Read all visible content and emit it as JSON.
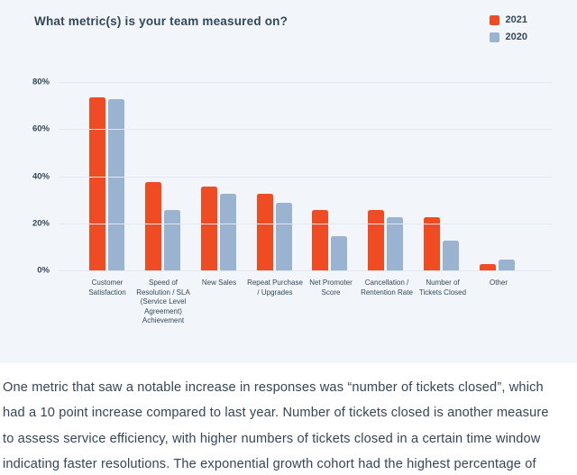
{
  "colors": {
    "card_background": "#f2f6fa",
    "accent_2021": "#f04c24",
    "accent_2020": "#9ab3d1",
    "text": "#33475b",
    "gridline": "#e2e8f0"
  },
  "chart_data": {
    "type": "bar",
    "title": "What metric(s) is your team measured on?",
    "categories": [
      "Customer Satisfaction",
      "Speed of Resolution / SLA (Service Level Agreement) Achievement",
      "New Sales",
      "Repeat Purchase / Upgrades",
      "Net Promoter Score",
      "Cancellation / Rentention Rate",
      "Number of Tickets Closed",
      "Other"
    ],
    "series": [
      {
        "name": "2021",
        "color": "#f04c24",
        "values": [
          74,
          38,
          36,
          33,
          26,
          26,
          23,
          3
        ]
      },
      {
        "name": "2020",
        "color": "#9ab3d1",
        "values": [
          73,
          26,
          33,
          29,
          15,
          23,
          13,
          5
        ]
      }
    ],
    "xlabel": "",
    "ylabel": "",
    "ylim": [
      0,
      80
    ],
    "yticks": [
      "0%",
      "20%",
      "40%",
      "60%",
      "80%"
    ],
    "grid": true,
    "legend_position": "top-right"
  },
  "legend": {
    "items": [
      {
        "label": "2021"
      },
      {
        "label": "2020"
      }
    ]
  },
  "paragraph": {
    "lines": [
      "One metric that saw a notable increase in responses was “number of tickets closed”, which",
      "had a 10 point increase compared to last year. Number of tickets closed is another measure",
      "to assess service efficiency, with higher numbers of tickets closed in a certain time window",
      "indicating faster resolutions. The exponential growth cohort had the highest percentage of"
    ]
  }
}
